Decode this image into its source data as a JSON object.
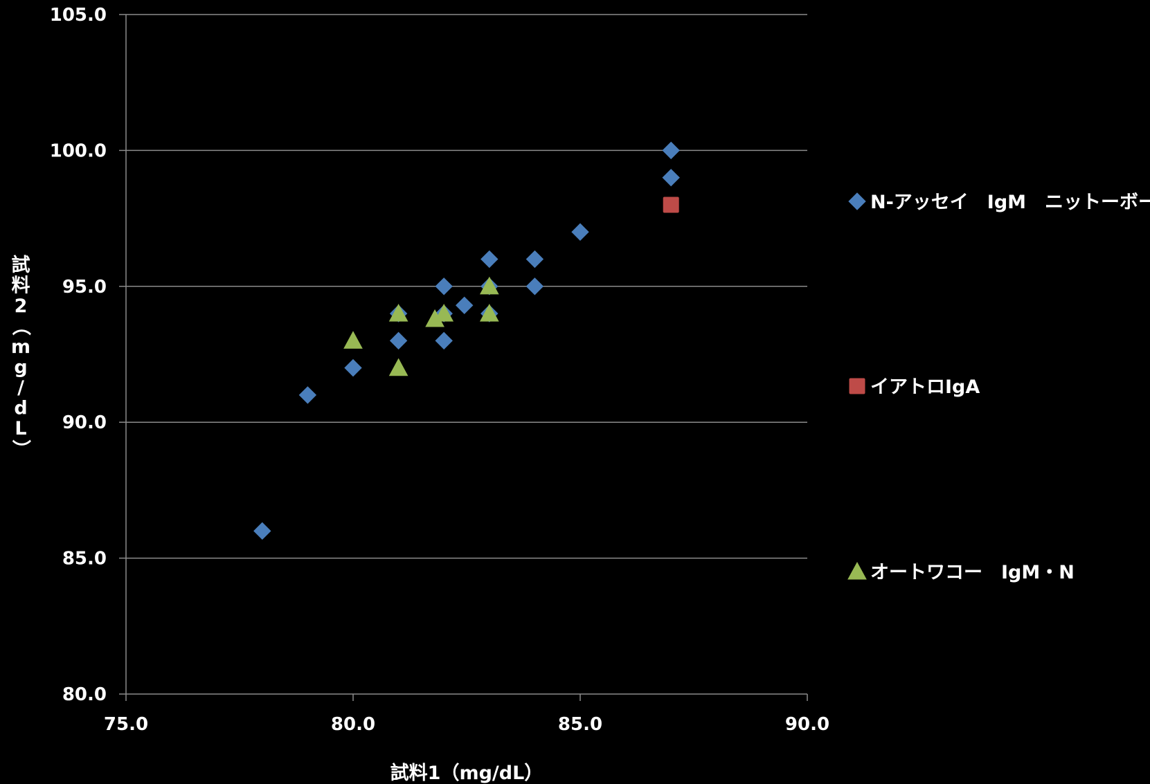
{
  "chart_data": {
    "type": "scatter",
    "xlabel": "試料1（mg/dL）",
    "ylabel": "試料2（mg/dL）",
    "xlim": [
      75.0,
      90.0
    ],
    "ylim": [
      80.0,
      105.0
    ],
    "x_ticks": [
      75.0,
      80.0,
      85.0,
      90.0
    ],
    "y_ticks": [
      80.0,
      85.0,
      90.0,
      95.0,
      100.0,
      105.0
    ],
    "x_tick_labels": [
      "75.0",
      "80.0",
      "85.0",
      "90.0"
    ],
    "y_tick_labels": [
      "80.0",
      "85.0",
      "90.0",
      "95.0",
      "100.0",
      "105.0"
    ],
    "grid": "horizontal",
    "legend_position": "right",
    "background": "#000000",
    "series": [
      {
        "name": "N-アッセイ　IgM　ニットーボー",
        "marker": "diamond",
        "color": "#4a7ebb",
        "points": [
          [
            78,
            86
          ],
          [
            79,
            91
          ],
          [
            80,
            92
          ],
          [
            81,
            93
          ],
          [
            81,
            94
          ],
          [
            82,
            93
          ],
          [
            82,
            94
          ],
          [
            82,
            95
          ],
          [
            82.45,
            94.3
          ],
          [
            83,
            94
          ],
          [
            83,
            95
          ],
          [
            83,
            96
          ],
          [
            84,
            95
          ],
          [
            84,
            96
          ],
          [
            85,
            97
          ],
          [
            87,
            99
          ],
          [
            87,
            100
          ]
        ]
      },
      {
        "name": "イアトロIgA",
        "marker": "square",
        "color": "#be4b48",
        "points": [
          [
            87,
            98
          ]
        ]
      },
      {
        "name": "オートワコー　IgM・N",
        "marker": "triangle",
        "color": "#98b954",
        "points": [
          [
            80,
            93
          ],
          [
            81,
            92
          ],
          [
            81,
            94
          ],
          [
            81.8,
            93.8
          ],
          [
            82,
            94
          ],
          [
            83,
            94
          ],
          [
            83,
            95
          ]
        ]
      }
    ]
  }
}
